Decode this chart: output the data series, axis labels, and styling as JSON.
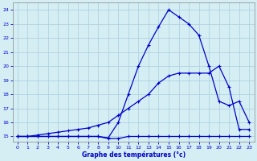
{
  "xlabel": "Graphe des températures (°c)",
  "background_color": "#d4eef4",
  "grid_color": "#aaccdd",
  "line_color": "#0000cc",
  "xlim": [
    -0.5,
    23.5
  ],
  "ylim": [
    14.6,
    24.5
  ],
  "yticks": [
    15,
    16,
    17,
    18,
    19,
    20,
    21,
    22,
    23,
    24
  ],
  "xticks": [
    0,
    1,
    2,
    3,
    4,
    5,
    6,
    7,
    8,
    9,
    10,
    11,
    12,
    13,
    14,
    15,
    16,
    17,
    18,
    19,
    20,
    21,
    22,
    23
  ],
  "line1_x": [
    0,
    1,
    2,
    3,
    4,
    5,
    6,
    7,
    8,
    9,
    10,
    11,
    12,
    13,
    14,
    15,
    16,
    17,
    18,
    19,
    20,
    21,
    22,
    23
  ],
  "line1_y": [
    15.0,
    15.0,
    15.0,
    15.0,
    15.0,
    15.0,
    15.0,
    15.0,
    15.0,
    14.85,
    14.85,
    15.0,
    15.0,
    15.0,
    15.0,
    15.0,
    15.0,
    15.0,
    15.0,
    15.0,
    15.0,
    15.0,
    15.0,
    15.0
  ],
  "line2_x": [
    0,
    1,
    2,
    3,
    4,
    5,
    6,
    7,
    8,
    9,
    10,
    11,
    12,
    13,
    14,
    15,
    16,
    17,
    18,
    19,
    20,
    21,
    22,
    23
  ],
  "line2_y": [
    15.0,
    15.0,
    15.1,
    15.2,
    15.3,
    15.4,
    15.5,
    15.6,
    15.8,
    16.0,
    16.5,
    17.0,
    17.5,
    18.0,
    18.8,
    19.3,
    19.5,
    19.5,
    19.5,
    19.5,
    20.0,
    18.5,
    15.5,
    15.5
  ],
  "line3_x": [
    0,
    1,
    2,
    3,
    4,
    5,
    6,
    7,
    8,
    9,
    10,
    11,
    12,
    13,
    14,
    15,
    16,
    17,
    18,
    19,
    20,
    21,
    22,
    23
  ],
  "line3_y": [
    15.0,
    15.0,
    15.0,
    15.0,
    15.0,
    15.0,
    15.0,
    15.0,
    15.0,
    14.9,
    16.0,
    18.0,
    20.0,
    21.5,
    22.8,
    24.0,
    23.5,
    23.0,
    22.2,
    20.0,
    17.5,
    17.2,
    17.5,
    16.0
  ]
}
